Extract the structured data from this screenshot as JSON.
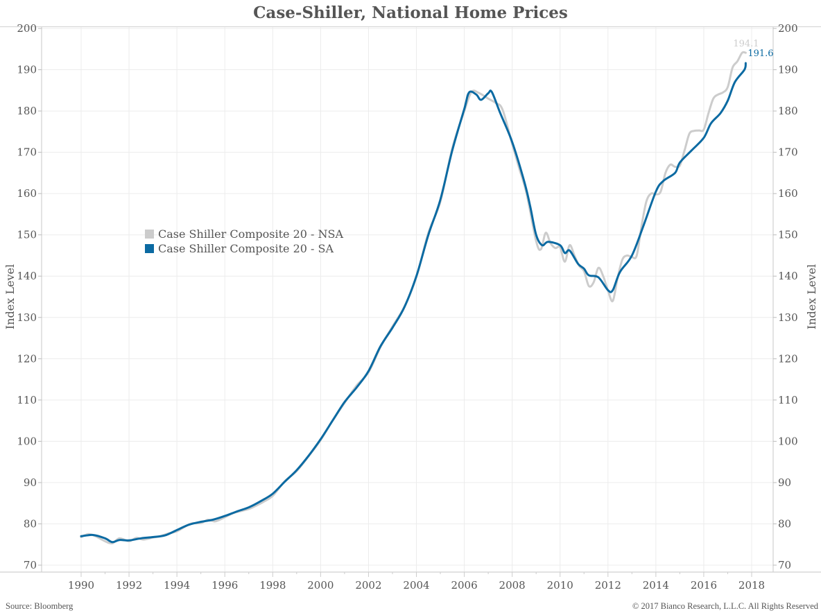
{
  "chart_data": {
    "type": "line",
    "title": "Case-Shiller, National Home Prices",
    "xlabel": "",
    "ylabel": "Index Level",
    "ylabel_right": "Index Level",
    "xlim": [
      1989.2,
      2018.9
    ],
    "ylim": [
      70,
      200
    ],
    "x_ticks": [
      "1990",
      "1992",
      "1994",
      "1996",
      "1998",
      "2000",
      "2002",
      "2004",
      "2006",
      "2008",
      "2010",
      "2012",
      "2014",
      "2016",
      "2018"
    ],
    "y_ticks": [
      "70",
      "80",
      "90",
      "100",
      "110",
      "120",
      "130",
      "140",
      "150",
      "160",
      "170",
      "180",
      "190",
      "200"
    ],
    "grid": true,
    "legend_position": "left-middle",
    "series": [
      {
        "name": "Case Shiller Composite 20 - NSA",
        "color": "#cccccc",
        "end_label": "194.1",
        "x": [
          1990,
          1990.3,
          1990.6,
          1991,
          1991.3,
          1991.6,
          1992,
          1992.3,
          1992.6,
          1993,
          1993.3,
          1993.6,
          1994,
          1994.3,
          1994.6,
          1995,
          1995.3,
          1995.6,
          1996,
          1996.3,
          1996.6,
          1997,
          1997.3,
          1997.6,
          1998,
          1998.5,
          1999,
          1999.5,
          2000,
          2000.5,
          2001,
          2001.5,
          2002,
          2002.5,
          2003,
          2003.5,
          2004,
          2004.5,
          2005,
          2005.5,
          2006,
          2006.3,
          2006.6,
          2007,
          2007.3,
          2007.6,
          2008,
          2008.3,
          2008.6,
          2009,
          2009.2,
          2009.4,
          2009.6,
          2009.8,
          2010,
          2010.2,
          2010.4,
          2010.6,
          2010.8,
          2011,
          2011.2,
          2011.4,
          2011.6,
          2011.8,
          2012,
          2012.2,
          2012.4,
          2012.6,
          2012.8,
          2013,
          2013.2,
          2013.4,
          2013.6,
          2013.8,
          2014,
          2014.2,
          2014.4,
          2014.6,
          2014.8,
          2015,
          2015.2,
          2015.4,
          2015.6,
          2015.8,
          2016,
          2016.2,
          2016.4,
          2016.6,
          2016.8,
          2017,
          2017.2,
          2017.4,
          2017.6,
          2017.75
        ],
        "values": [
          76.8,
          77.5,
          77.0,
          75.8,
          75.3,
          76.5,
          75.8,
          76.6,
          76.2,
          76.7,
          77.0,
          77.6,
          78.2,
          79.2,
          80.1,
          80.2,
          81.0,
          80.6,
          81.6,
          82.5,
          83.0,
          83.6,
          84.4,
          85.3,
          86.8,
          90.3,
          92.8,
          96.4,
          100.3,
          105.0,
          109.3,
          113.5,
          116.7,
          122.8,
          127.8,
          132.6,
          139.8,
          150.5,
          158.0,
          171.0,
          180.0,
          184.6,
          184.4,
          183.0,
          182.0,
          180.3,
          172.0,
          166.0,
          160.0,
          148.5,
          146.5,
          150.5,
          148.0,
          146.8,
          147.0,
          143.5,
          147.5,
          145.0,
          142.5,
          141.2,
          137.6,
          138.5,
          142.0,
          140.0,
          136.5,
          134.0,
          139.5,
          144.0,
          145.0,
          144.6,
          145.0,
          152.0,
          158.0,
          160.0,
          159.8,
          160.5,
          165.0,
          167.0,
          166.5,
          166.8,
          170.5,
          174.5,
          175.2,
          175.3,
          175.5,
          179.5,
          183.0,
          184.0,
          184.5,
          185.8,
          190.5,
          192.0,
          194.1,
          194.1
        ]
      },
      {
        "name": "Case Shiller Composite 20 - SA",
        "color": "#0b6aa2",
        "end_label": "191.6",
        "x": [
          1990,
          1990.5,
          1991,
          1991.3,
          1991.6,
          1992,
          1992.5,
          1993,
          1993.5,
          1994,
          1994.5,
          1995,
          1995.5,
          1996,
          1996.5,
          1997,
          1997.5,
          1998,
          1998.5,
          1999,
          1999.5,
          2000,
          2000.5,
          2001,
          2001.5,
          2002,
          2002.5,
          2003,
          2003.5,
          2004,
          2004.5,
          2005,
          2005.5,
          2006,
          2006.2,
          2006.5,
          2006.7,
          2007,
          2007.15,
          2007.5,
          2008,
          2008.5,
          2008.75,
          2009,
          2009.25,
          2009.5,
          2010,
          2010.2,
          2010.4,
          2010.75,
          2011,
          2011.2,
          2011.6,
          2012,
          2012.2,
          2012.5,
          2013,
          2013.5,
          2014,
          2014.3,
          2014.8,
          2015,
          2015.5,
          2016,
          2016.3,
          2016.7,
          2017,
          2017.3,
          2017.7,
          2017.75
        ],
        "values": [
          77.0,
          77.3,
          76.5,
          75.6,
          76.1,
          76.0,
          76.5,
          76.8,
          77.2,
          78.5,
          79.8,
          80.5,
          81.0,
          81.9,
          83.0,
          84.0,
          85.5,
          87.3,
          90.2,
          93.0,
          96.5,
          100.5,
          105.0,
          109.5,
          113.0,
          117.0,
          123.0,
          127.5,
          132.5,
          140.0,
          150.0,
          158.5,
          170.5,
          180.5,
          184.5,
          184.0,
          182.7,
          184.3,
          184.6,
          179.5,
          172.5,
          163.0,
          157.0,
          150.0,
          147.5,
          148.3,
          147.5,
          145.6,
          146.2,
          143.0,
          141.8,
          140.2,
          139.7,
          136.6,
          136.6,
          141.0,
          145.0,
          152.5,
          160.5,
          163.0,
          165.0,
          167.5,
          170.5,
          173.5,
          177.0,
          179.5,
          182.5,
          187.0,
          190.0,
          191.6
        ]
      }
    ]
  },
  "footer": {
    "source": "Source: Bloomberg",
    "copyright": "© 2017 Bianco Research, L.L.C. All Rights Reserved"
  }
}
